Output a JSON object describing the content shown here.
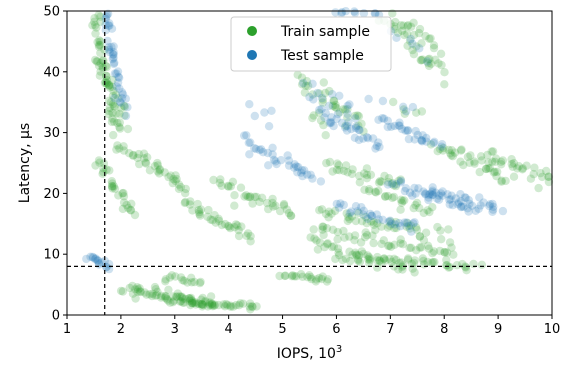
{
  "chart_data": {
    "type": "scatter",
    "xlabel": "IOPS, 10",
    "xlabel_sup": "3",
    "ylabel": "Latency, μs",
    "xlim": [
      1,
      10
    ],
    "ylim": [
      0,
      50
    ],
    "xticks": [
      "1",
      "2",
      "3",
      "4",
      "5",
      "6",
      "7",
      "8",
      "9",
      "10"
    ],
    "yticks": [
      "0",
      "10",
      "20",
      "30",
      "40",
      "50"
    ],
    "grid": false,
    "legend_position": "top-center",
    "threshold_lines": {
      "x": 1.7,
      "y": 8
    },
    "series": [
      {
        "name": "Train sample",
        "color": "#2ca02c",
        "segments": [
          {
            "x0": 1.48,
            "y0": 49.8,
            "x1": 1.96,
            "y1": 29.0,
            "n": 48,
            "sx": 0.05,
            "sy": 1.0
          },
          {
            "x0": 1.6,
            "y0": 42.0,
            "x1": 2.08,
            "y1": 32.0,
            "n": 24,
            "sx": 0.06,
            "sy": 1.2
          },
          {
            "x0": 1.55,
            "y0": 25.5,
            "x1": 2.25,
            "y1": 16.5,
            "n": 28,
            "sx": 0.04,
            "sy": 0.6
          },
          {
            "x0": 1.9,
            "y0": 27.8,
            "x1": 2.4,
            "y1": 25.5,
            "n": 10,
            "sx": 0.05,
            "sy": 0.5
          },
          {
            "x0": 2.4,
            "y0": 26.0,
            "x1": 3.2,
            "y1": 20.5,
            "n": 26,
            "sx": 0.05,
            "sy": 0.5
          },
          {
            "x0": 3.2,
            "y0": 18.5,
            "x1": 4.4,
            "y1": 12.8,
            "n": 34,
            "sx": 0.05,
            "sy": 0.5
          },
          {
            "x0": 3.8,
            "y0": 22.0,
            "x1": 5.2,
            "y1": 16.5,
            "n": 34,
            "sx": 0.05,
            "sy": 0.6
          },
          {
            "x0": 2.1,
            "y0": 4.2,
            "x1": 3.7,
            "y1": 1.8,
            "n": 60,
            "sx": 0.08,
            "sy": 0.45
          },
          {
            "x0": 3.0,
            "y0": 2.2,
            "x1": 4.5,
            "y1": 1.3,
            "n": 40,
            "sx": 0.06,
            "sy": 0.25
          },
          {
            "x0": 2.8,
            "y0": 6.3,
            "x1": 3.5,
            "y1": 5.5,
            "n": 14,
            "sx": 0.04,
            "sy": 0.3
          },
          {
            "x0": 5.0,
            "y0": 6.6,
            "x1": 5.9,
            "y1": 5.8,
            "n": 20,
            "sx": 0.04,
            "sy": 0.25
          },
          {
            "x0": 5.3,
            "y0": 39.0,
            "x1": 6.5,
            "y1": 31.0,
            "n": 32,
            "sx": 0.06,
            "sy": 0.8
          },
          {
            "x0": 5.8,
            "y0": 24.5,
            "x1": 7.2,
            "y1": 21.5,
            "n": 30,
            "sx": 0.06,
            "sy": 0.5
          },
          {
            "x0": 5.7,
            "y0": 17.0,
            "x1": 8.0,
            "y1": 13.0,
            "n": 44,
            "sx": 0.06,
            "sy": 0.5
          },
          {
            "x0": 5.6,
            "y0": 14.0,
            "x1": 8.2,
            "y1": 10.0,
            "n": 44,
            "sx": 0.06,
            "sy": 0.5
          },
          {
            "x0": 5.5,
            "y0": 12.0,
            "x1": 7.5,
            "y1": 7.5,
            "n": 36,
            "sx": 0.06,
            "sy": 0.5
          },
          {
            "x0": 6.0,
            "y0": 9.5,
            "x1": 8.6,
            "y1": 8.0,
            "n": 44,
            "sx": 0.06,
            "sy": 0.35
          },
          {
            "x0": 7.8,
            "y0": 28.0,
            "x1": 9.2,
            "y1": 22.5,
            "n": 34,
            "sx": 0.06,
            "sy": 0.6
          },
          {
            "x0": 8.7,
            "y0": 26.5,
            "x1": 10.0,
            "y1": 22.5,
            "n": 30,
            "sx": 0.05,
            "sy": 0.6
          },
          {
            "x0": 6.9,
            "y0": 49.8,
            "x1": 7.8,
            "y1": 41.0,
            "n": 30,
            "sx": 0.07,
            "sy": 0.9
          },
          {
            "x0": 7.4,
            "y0": 48.5,
            "x1": 8.0,
            "y1": 39.0,
            "n": 16,
            "sx": 0.05,
            "sy": 0.9
          },
          {
            "x0": 6.5,
            "y0": 20.5,
            "x1": 7.8,
            "y1": 17.0,
            "n": 24,
            "sx": 0.05,
            "sy": 0.5
          },
          {
            "x0": 5.3,
            "y0": 33.0,
            "x1": 5.8,
            "y1": 31.0,
            "n": 6,
            "sx": 0.2,
            "sy": 1.2
          },
          {
            "x0": 7.0,
            "y0": 34.0,
            "x1": 7.8,
            "y1": 33.0,
            "n": 5,
            "sx": 0.2,
            "sy": 1.0
          }
        ]
      },
      {
        "name": "Test sample",
        "color": "#1f77b4",
        "segments": [
          {
            "x0": 1.7,
            "y0": 49.5,
            "x1": 2.05,
            "y1": 34.0,
            "n": 40,
            "sx": 0.05,
            "sy": 0.9
          },
          {
            "x0": 1.4,
            "y0": 9.8,
            "x1": 1.8,
            "y1": 7.9,
            "n": 16,
            "sx": 0.02,
            "sy": 0.3
          },
          {
            "x0": 4.3,
            "y0": 28.5,
            "x1": 5.6,
            "y1": 22.0,
            "n": 34,
            "sx": 0.05,
            "sy": 0.6
          },
          {
            "x0": 5.7,
            "y0": 33.5,
            "x1": 6.8,
            "y1": 27.5,
            "n": 30,
            "sx": 0.06,
            "sy": 0.7
          },
          {
            "x0": 6.8,
            "y0": 32.5,
            "x1": 7.9,
            "y1": 28.0,
            "n": 28,
            "sx": 0.06,
            "sy": 0.6
          },
          {
            "x0": 7.0,
            "y0": 21.5,
            "x1": 8.6,
            "y1": 17.5,
            "n": 34,
            "sx": 0.06,
            "sy": 0.5
          },
          {
            "x0": 7.6,
            "y0": 21.0,
            "x1": 9.1,
            "y1": 17.0,
            "n": 30,
            "sx": 0.06,
            "sy": 0.5
          },
          {
            "x0": 6.0,
            "y0": 18.0,
            "x1": 7.5,
            "y1": 14.5,
            "n": 30,
            "sx": 0.06,
            "sy": 0.5
          },
          {
            "x0": 5.4,
            "y0": 37.0,
            "x1": 6.3,
            "y1": 33.5,
            "n": 14,
            "sx": 0.08,
            "sy": 1.0
          },
          {
            "x0": 6.0,
            "y0": 49.8,
            "x1": 6.8,
            "y1": 49.5,
            "n": 10,
            "sx": 0.1,
            "sy": 0.2
          },
          {
            "x0": 7.2,
            "y0": 46.5,
            "x1": 7.6,
            "y1": 43.0,
            "n": 6,
            "sx": 0.06,
            "sy": 0.7
          },
          {
            "x0": 4.4,
            "y0": 33.0,
            "x1": 5.0,
            "y1": 31.5,
            "n": 5,
            "sx": 0.15,
            "sy": 1.0
          },
          {
            "x0": 6.8,
            "y0": 35.0,
            "x1": 7.4,
            "y1": 33.5,
            "n": 5,
            "sx": 0.15,
            "sy": 0.8
          }
        ]
      }
    ]
  }
}
